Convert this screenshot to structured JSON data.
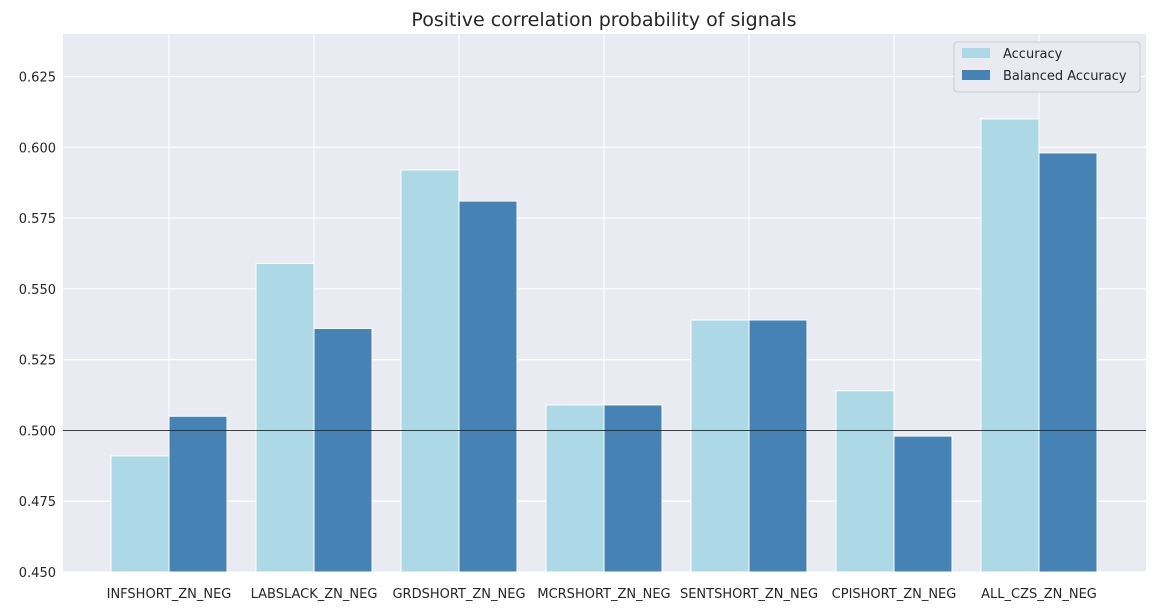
{
  "chart_data": {
    "type": "bar",
    "title": "Positive correlation probability of signals",
    "xlabel": "",
    "ylabel": "",
    "categories": [
      "INFSHORT_ZN_NEG",
      "LABSLACK_ZN_NEG",
      "GRDSHORT_ZN_NEG",
      "MCRSHORT_ZN_NEG",
      "SENTSHORT_ZN_NEG",
      "CPISHORT_ZN_NEG",
      "ALL_CZS_ZN_NEG"
    ],
    "series": [
      {
        "name": "Accuracy",
        "color": "#add8e6",
        "values": [
          0.491,
          0.559,
          0.592,
          0.509,
          0.539,
          0.514,
          0.61
        ]
      },
      {
        "name": "Balanced Accuracy",
        "color": "#4682b4",
        "values": [
          0.505,
          0.536,
          0.581,
          0.509,
          0.539,
          0.498,
          0.598
        ]
      }
    ],
    "ylim": [
      0.45,
      0.64
    ],
    "yticks": [
      "0.450",
      "0.475",
      "0.500",
      "0.525",
      "0.550",
      "0.575",
      "0.600",
      "0.625"
    ],
    "reference_line": 0.5,
    "grid": true,
    "legend": "top-right"
  }
}
